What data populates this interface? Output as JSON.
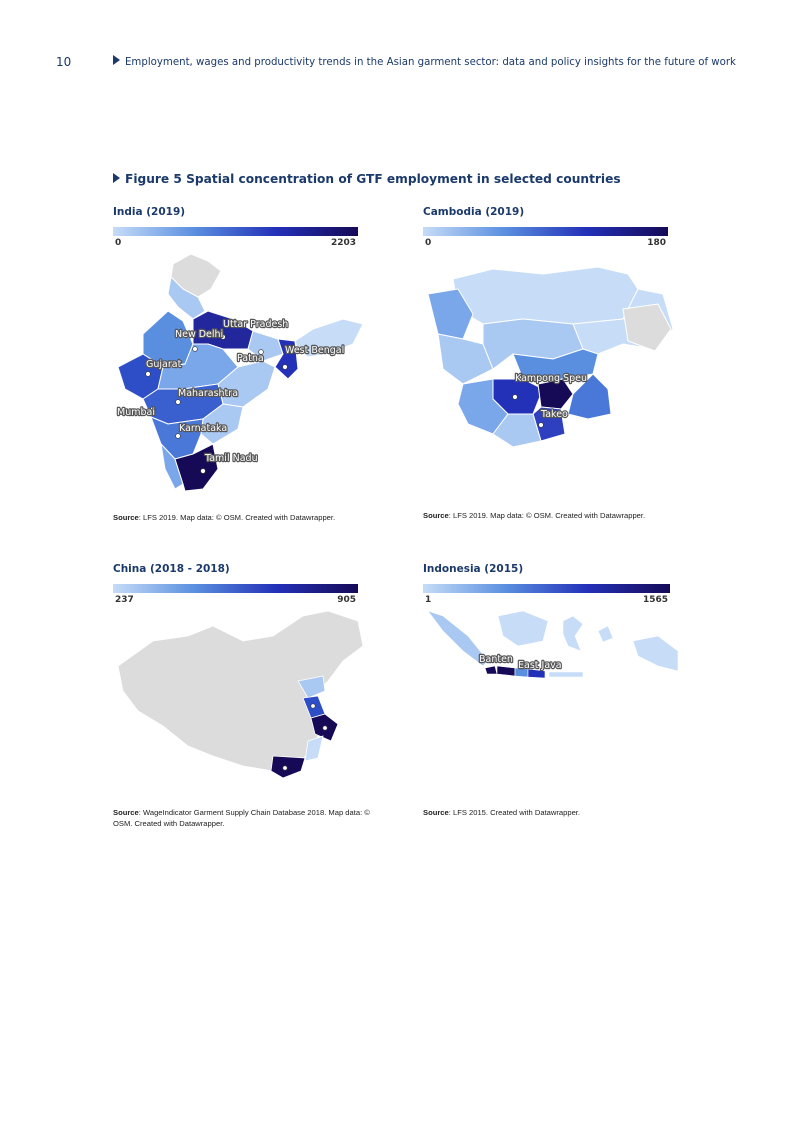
{
  "page_number": "10",
  "running_header": "Employment, wages and productivity trends in the Asian garment sector: data and policy insights for the future of work",
  "figure_title": "Figure 5 Spatial concentration of GTF employment in selected countries",
  "colors": {
    "low": "#c6dcf7",
    "mid": "#5a8fe0",
    "high": "#2330b8",
    "max": "#160a57",
    "no_data": "#dcdcdc",
    "text": "#1b3a6b"
  },
  "panels": {
    "india": {
      "title": "India (2019)",
      "legend": {
        "min": "0",
        "max": "2203"
      },
      "labels": [
        "Uttar Pradesh",
        "New Delhi",
        "Patna",
        "West Bengal",
        "Gujarat",
        "Maharashtra",
        "Mumbai",
        "Karnataka",
        "Tamil Nadu"
      ],
      "source_label": "Source",
      "source_text": ": LFS 2019. Map data: © OSM. Created with Datawrapper."
    },
    "cambodia": {
      "title": "Cambodia (2019)",
      "legend": {
        "min": "0",
        "max": "180"
      },
      "labels": [
        "Kampong Speu",
        "Takeo"
      ],
      "source_label": "Source",
      "source_text": ": LFS 2019. Map data: © OSM. Created with Datawrapper."
    },
    "china": {
      "title": "China (2018 - 2018)",
      "legend": {
        "min": "237",
        "max": "905"
      },
      "labels": [],
      "source_label": "Source",
      "source_text": ": WageIndicator Garment Supply Chain Database 2018. Map data: © OSM. Created with Datawrapper."
    },
    "indonesia": {
      "title": "Indonesia (2015)",
      "legend": {
        "min": "1",
        "max": "1565"
      },
      "labels": [
        "Banten",
        "East Java"
      ],
      "source_label": "Source",
      "source_text": ": LFS 2015. Created with Datawrapper."
    }
  }
}
